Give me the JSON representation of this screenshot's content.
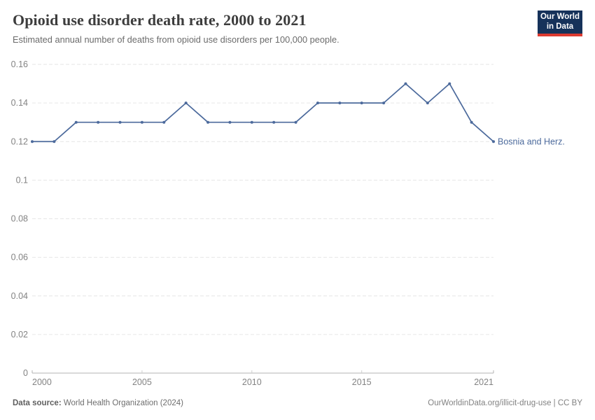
{
  "header": {
    "title": "Opioid use disorder death rate, 2000 to 2021",
    "subtitle": "Estimated annual number of deaths from opioid use disorders per 100,000 people.",
    "logo": {
      "line1": "Our World",
      "line2": "in Data",
      "bg_color": "#16325a",
      "accent_color": "#dc3a30"
    }
  },
  "chart_data": {
    "type": "line",
    "title": "Opioid use disorder death rate, 2000 to 2021",
    "xlabel": "",
    "ylabel": "Estimated annual number of deaths from opioid use disorders per 100,000 people",
    "xlim": [
      2000,
      2021
    ],
    "ylim": [
      0,
      0.16
    ],
    "grid": "horizontal-dashed",
    "legend_position": "end-of-line-label",
    "x": [
      2000,
      2001,
      2002,
      2003,
      2004,
      2005,
      2006,
      2007,
      2008,
      2009,
      2010,
      2011,
      2012,
      2013,
      2014,
      2015,
      2016,
      2017,
      2018,
      2019,
      2020,
      2021
    ],
    "series": [
      {
        "name": "Bosnia and Herz.",
        "color": "#4c6a9c",
        "values": [
          0.12,
          0.12,
          0.13,
          0.13,
          0.13,
          0.13,
          0.13,
          0.14,
          0.13,
          0.13,
          0.13,
          0.13,
          0.13,
          0.14,
          0.14,
          0.14,
          0.14,
          0.15,
          0.14,
          0.15,
          0.13,
          0.12
        ]
      }
    ],
    "x_ticks": [
      {
        "value": 2000,
        "label": "2000"
      },
      {
        "value": 2005,
        "label": "2005"
      },
      {
        "value": 2010,
        "label": "2010"
      },
      {
        "value": 2015,
        "label": "2015"
      },
      {
        "value": 2021,
        "label": "2021"
      }
    ],
    "y_ticks": [
      {
        "value": 0,
        "label": "0"
      },
      {
        "value": 0.02,
        "label": "0.02"
      },
      {
        "value": 0.04,
        "label": "0.04"
      },
      {
        "value": 0.06,
        "label": "0.06"
      },
      {
        "value": 0.08,
        "label": "0.08"
      },
      {
        "value": 0.1,
        "label": "0.1"
      },
      {
        "value": 0.12,
        "label": "0.12"
      },
      {
        "value": 0.14,
        "label": "0.14"
      },
      {
        "value": 0.16,
        "label": "0.16"
      }
    ],
    "colors": {
      "gridline": "#e6e6e6",
      "axis_line": "#b3b3b3",
      "tick": "#cfcfcf",
      "tick_label": "#838383"
    }
  },
  "footer": {
    "source_label": "Data source:",
    "source_value": "World Health Organization (2024)",
    "credit": "OurWorldinData.org/illicit-drug-use | CC BY"
  }
}
